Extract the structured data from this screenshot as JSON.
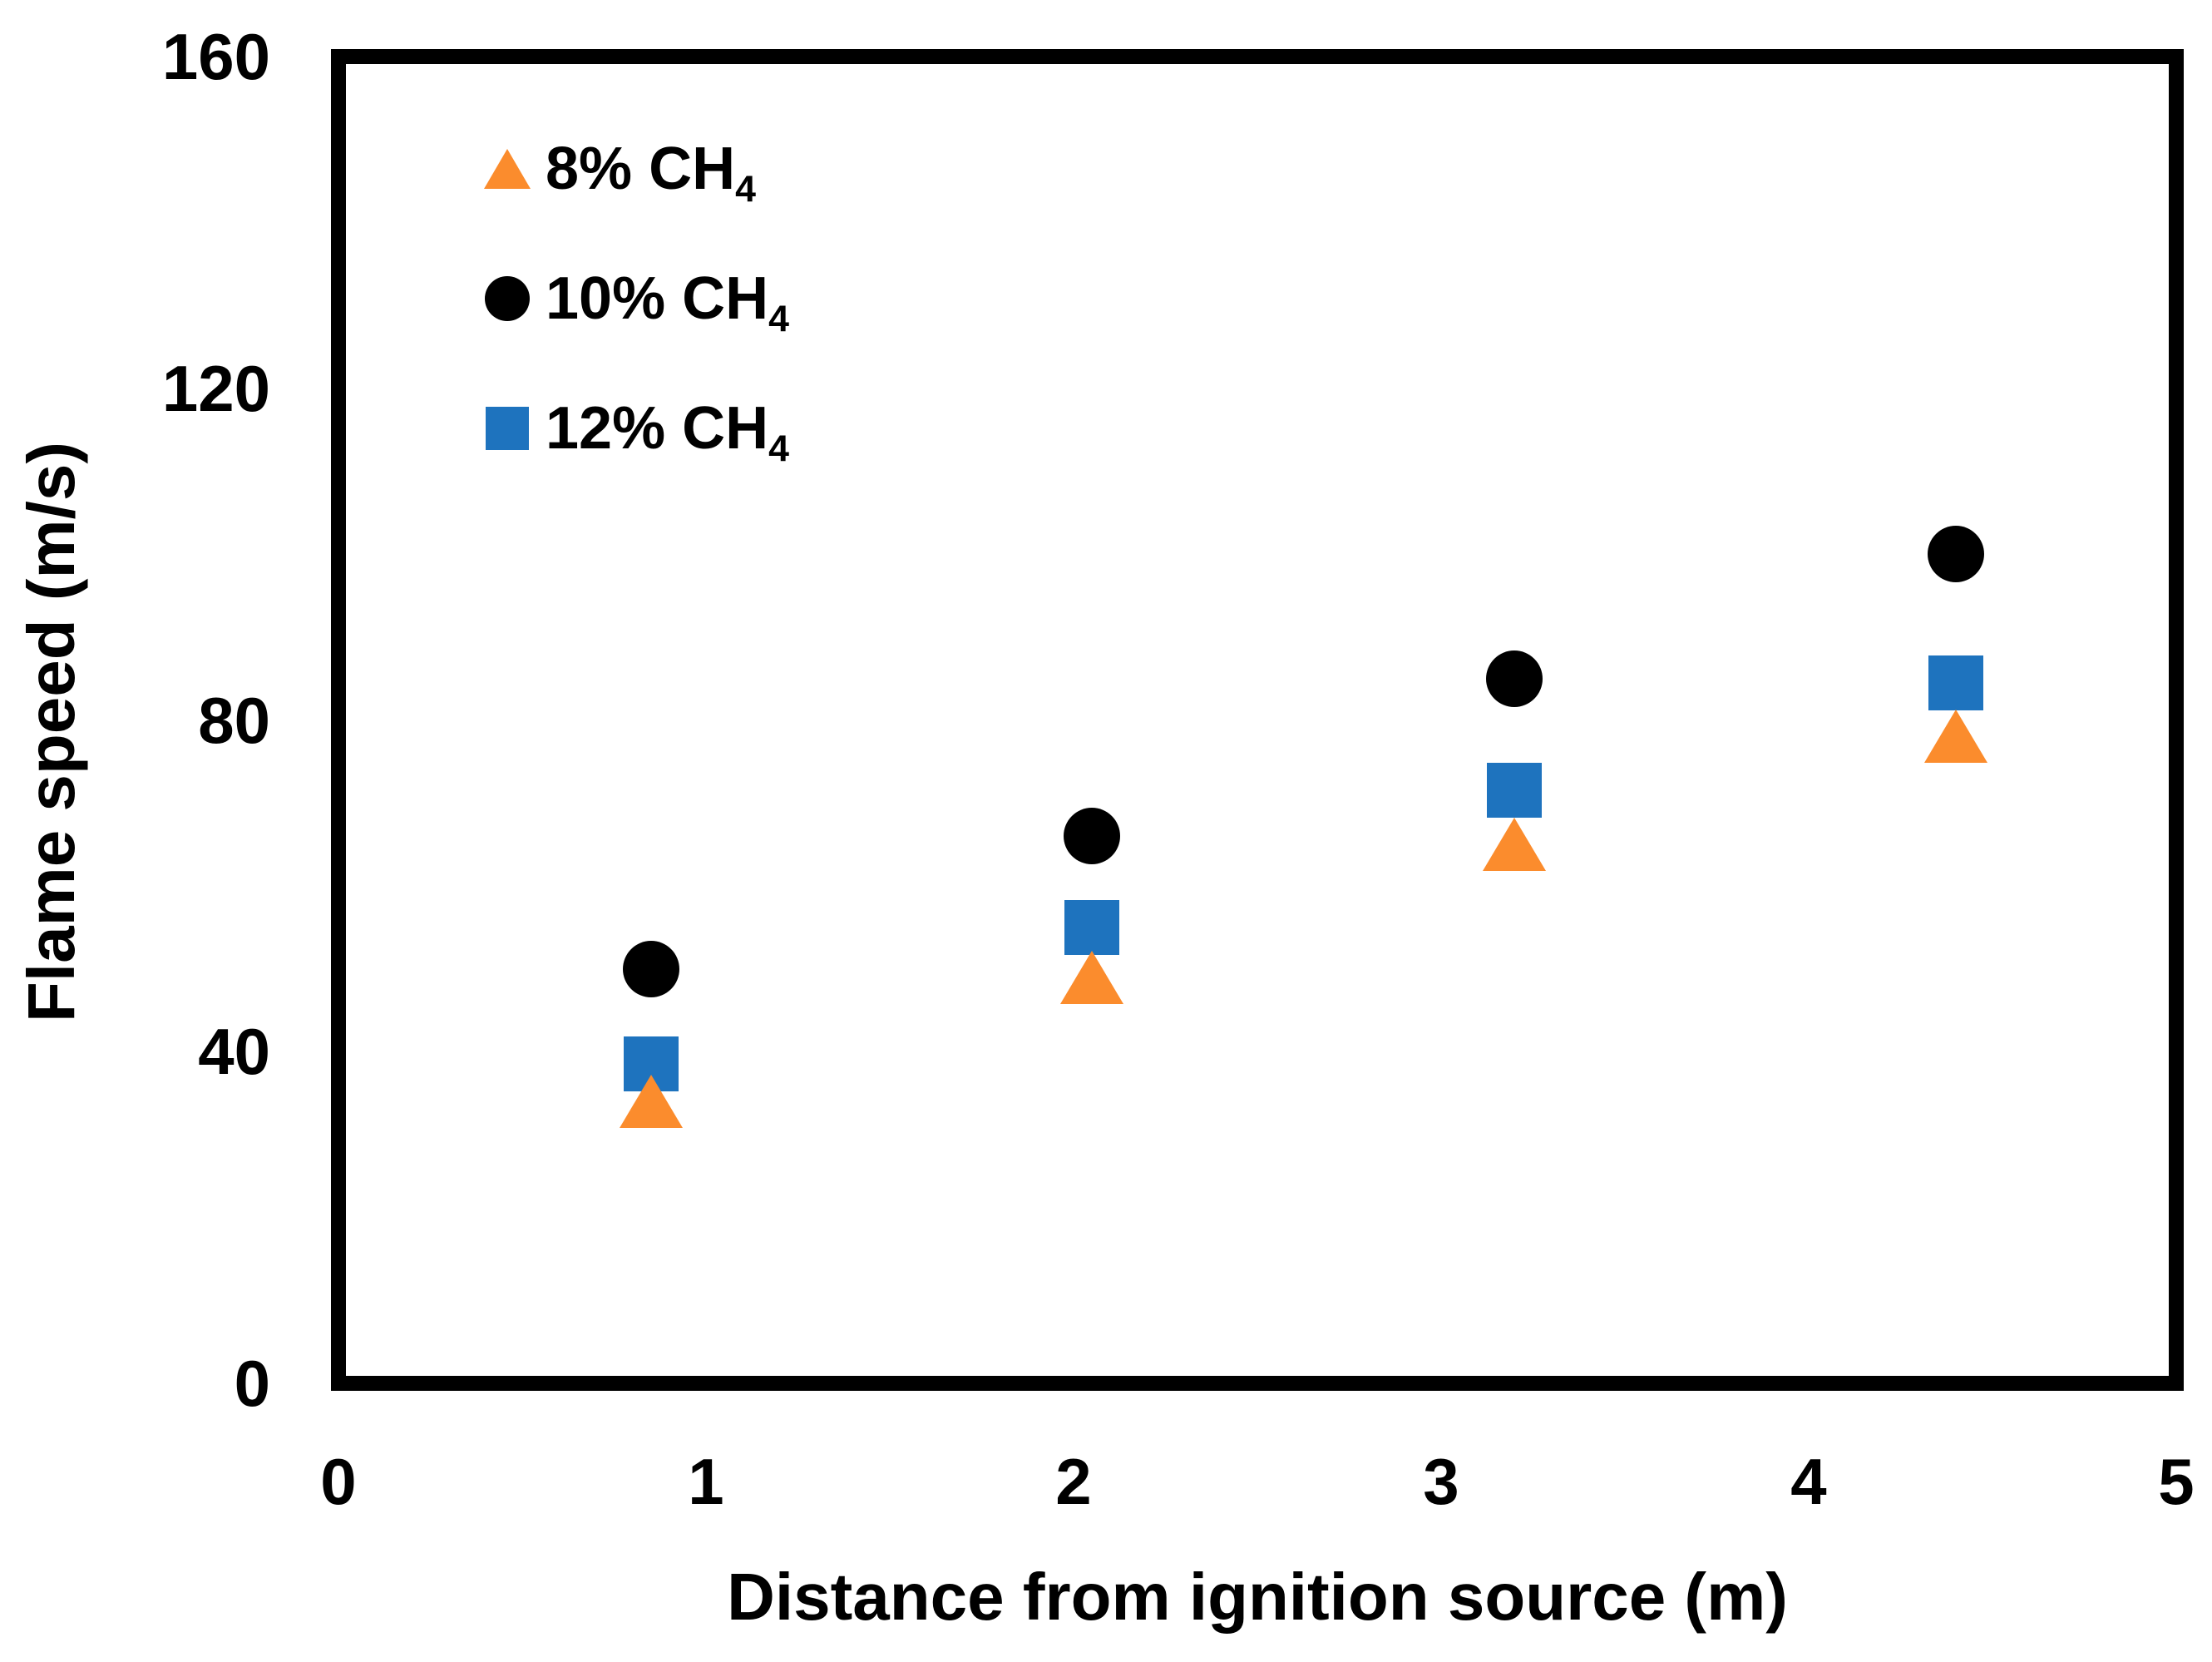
{
  "chart_data": {
    "type": "scatter",
    "title": "",
    "xlabel": "Distance from ignition source (m)",
    "ylabel": "Flame speed (m/s)",
    "xlim": [
      0,
      5
    ],
    "ylim": [
      0,
      160
    ],
    "x_ticks": [
      "0",
      "1",
      "2",
      "3",
      "4",
      "5"
    ],
    "y_ticks": [
      "0",
      "40",
      "80",
      "120",
      "160"
    ],
    "grid": false,
    "frame_color": "#000000",
    "background_color": "#FFFFFF",
    "legend": {
      "position": "inside-top-left",
      "items": [
        {
          "label_main": "8% CH",
          "label_sub": "4",
          "marker": "triangle",
          "color": "#FB8C2D"
        },
        {
          "label_main": "10% CH",
          "label_sub": "4",
          "marker": "circle",
          "color": "#000000"
        },
        {
          "label_main": "12% CH",
          "label_sub": "4",
          "marker": "square",
          "color": "#1E73BE"
        }
      ]
    },
    "series": [
      {
        "name": "8% CH4",
        "marker": "triangle",
        "color": "#FB8C2D",
        "x": [
          0.85,
          2.05,
          3.2,
          4.4
        ],
        "y": [
          34,
          49,
          65,
          78
        ]
      },
      {
        "name": "10% CH4",
        "marker": "circle",
        "color": "#000000",
        "x": [
          0.85,
          2.05,
          3.2,
          4.4
        ],
        "y": [
          50,
          66,
          85,
          100
        ]
      },
      {
        "name": "12% CH4",
        "marker": "square",
        "color": "#1E73BE",
        "x": [
          0.85,
          2.05,
          3.2,
          4.4
        ],
        "y": [
          38.5,
          55,
          71.5,
          84.5
        ]
      }
    ]
  }
}
